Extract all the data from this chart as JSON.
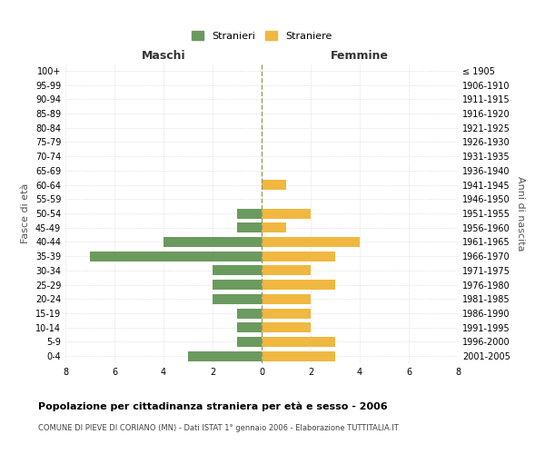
{
  "age_groups": [
    "100+",
    "95-99",
    "90-94",
    "85-89",
    "80-84",
    "75-79",
    "70-74",
    "65-69",
    "60-64",
    "55-59",
    "50-54",
    "45-49",
    "40-44",
    "35-39",
    "30-34",
    "25-29",
    "20-24",
    "15-19",
    "10-14",
    "5-9",
    "0-4"
  ],
  "birth_years": [
    "≤ 1905",
    "1906-1910",
    "1911-1915",
    "1916-1920",
    "1921-1925",
    "1926-1930",
    "1931-1935",
    "1936-1940",
    "1941-1945",
    "1946-1950",
    "1951-1955",
    "1956-1960",
    "1961-1965",
    "1966-1970",
    "1971-1975",
    "1976-1980",
    "1981-1985",
    "1986-1990",
    "1991-1995",
    "1996-2000",
    "2001-2005"
  ],
  "maschi": [
    0,
    0,
    0,
    0,
    0,
    0,
    0,
    0,
    0,
    0,
    1,
    1,
    4,
    7,
    2,
    2,
    2,
    1,
    1,
    1,
    3
  ],
  "femmine": [
    0,
    0,
    0,
    0,
    0,
    0,
    0,
    0,
    1,
    0,
    2,
    1,
    4,
    3,
    2,
    3,
    2,
    2,
    2,
    3,
    3
  ],
  "color_maschi": "#6b9a5e",
  "color_femmine": "#f0b840",
  "xlabel_left": "Maschi",
  "xlabel_right": "Femmine",
  "ylabel_left": "Fasce di età",
  "ylabel_right": "Anni di nascita",
  "title": "Popolazione per cittadinanza straniera per età e sesso - 2006",
  "subtitle": "COMUNE DI PIEVE DI CORIANO (MN) - Dati ISTAT 1° gennaio 2006 - Elaborazione TUTTITALIA.IT",
  "legend_maschi": "Stranieri",
  "legend_femmine": "Straniere",
  "xlim": 8,
  "background_color": "#ffffff",
  "grid_color": "#cccccc"
}
